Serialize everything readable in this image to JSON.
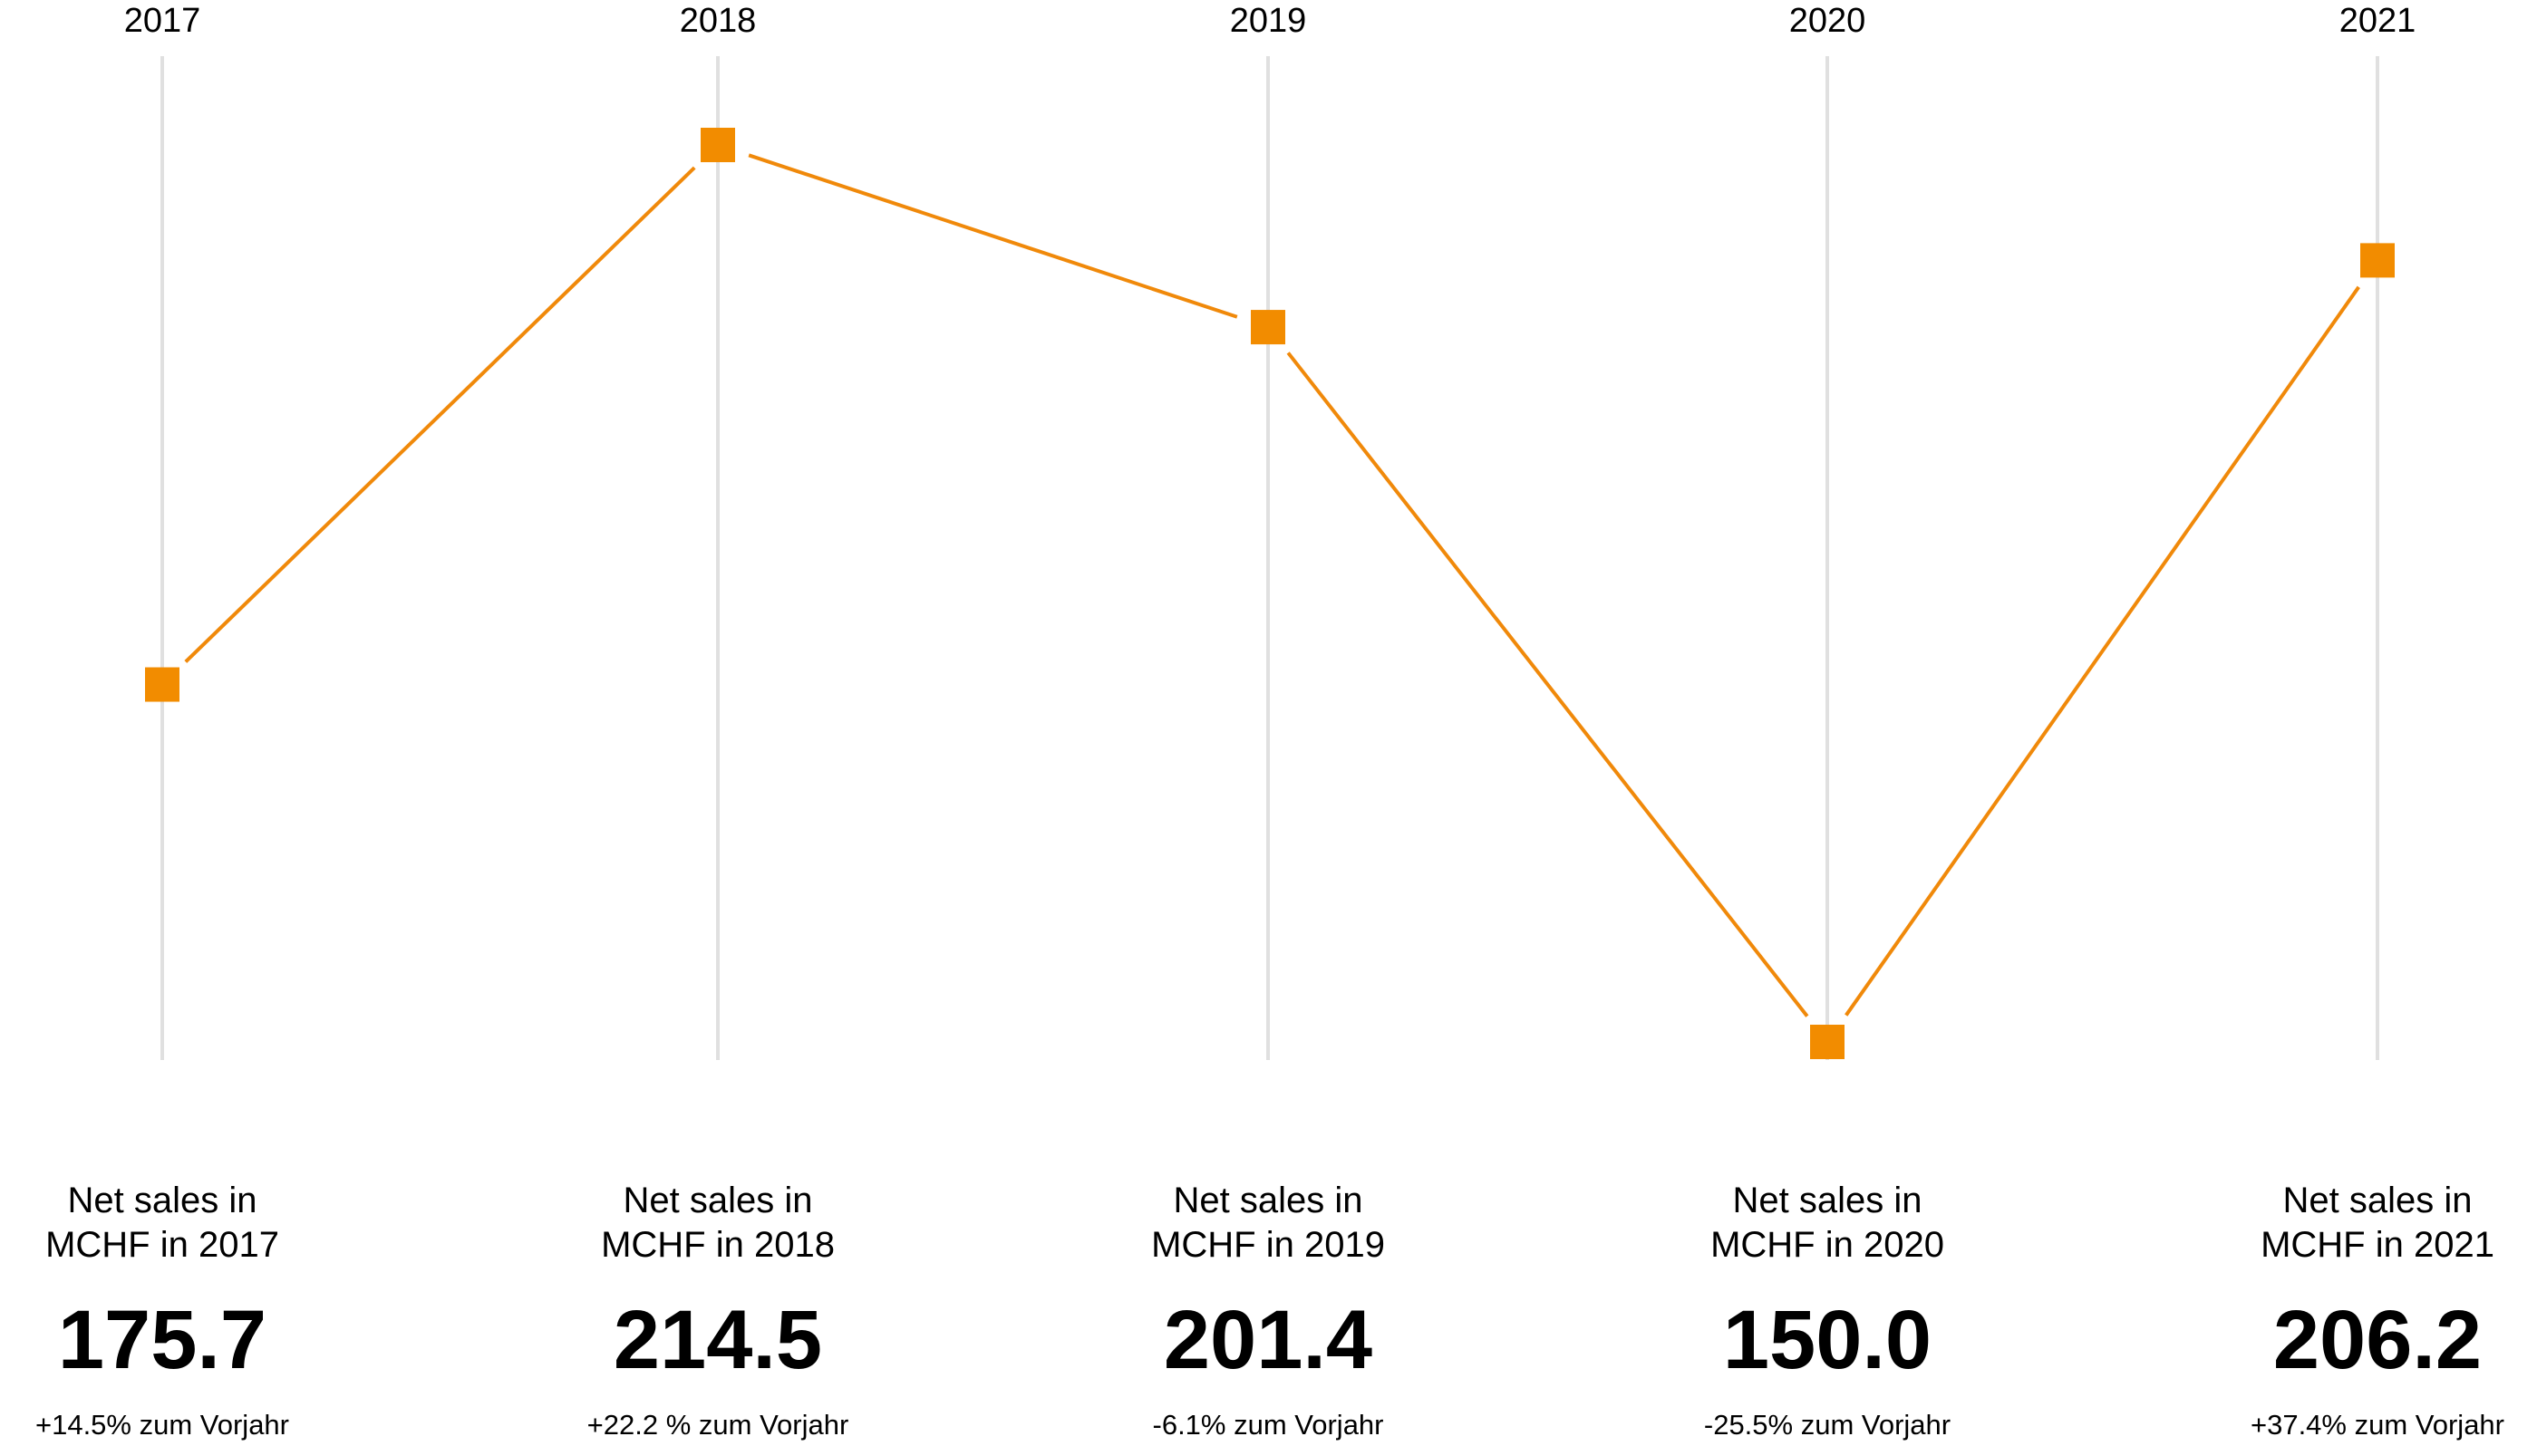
{
  "chart_data": {
    "type": "line",
    "x": [
      "2017",
      "2018",
      "2019",
      "2020",
      "2021"
    ],
    "series": [
      {
        "values": [
          175.7,
          214.5,
          201.4,
          150.0,
          206.2
        ]
      }
    ],
    "cards": [
      {
        "caption_line1": "Net sales in",
        "caption_line2": "MCHF in 2017",
        "value": "175.7",
        "change": "+14.5% zum Vorjahr"
      },
      {
        "caption_line1": "Net sales in",
        "caption_line2": "MCHF in 2018",
        "value": "214.5",
        "change": "+22.2 % zum Vorjahr"
      },
      {
        "caption_line1": "Net sales in",
        "caption_line2": "MCHF in 2019",
        "value": "201.4",
        "change": "-6.1% zum Vorjahr"
      },
      {
        "caption_line1": "Net sales in",
        "caption_line2": "MCHF in 2020",
        "value": "150.0",
        "change": "-25.5% zum Vorjahr"
      },
      {
        "caption_line1": "Net sales in",
        "caption_line2": "MCHF in 2021",
        "value": "206.2",
        "change": "+37.4% zum Vorjahr"
      }
    ],
    "grid": true,
    "legend": "none",
    "colors": {
      "line": "#F0890A",
      "marker": "#F28C00",
      "gridline": "#E0E0E0",
      "text": "#000000"
    }
  }
}
